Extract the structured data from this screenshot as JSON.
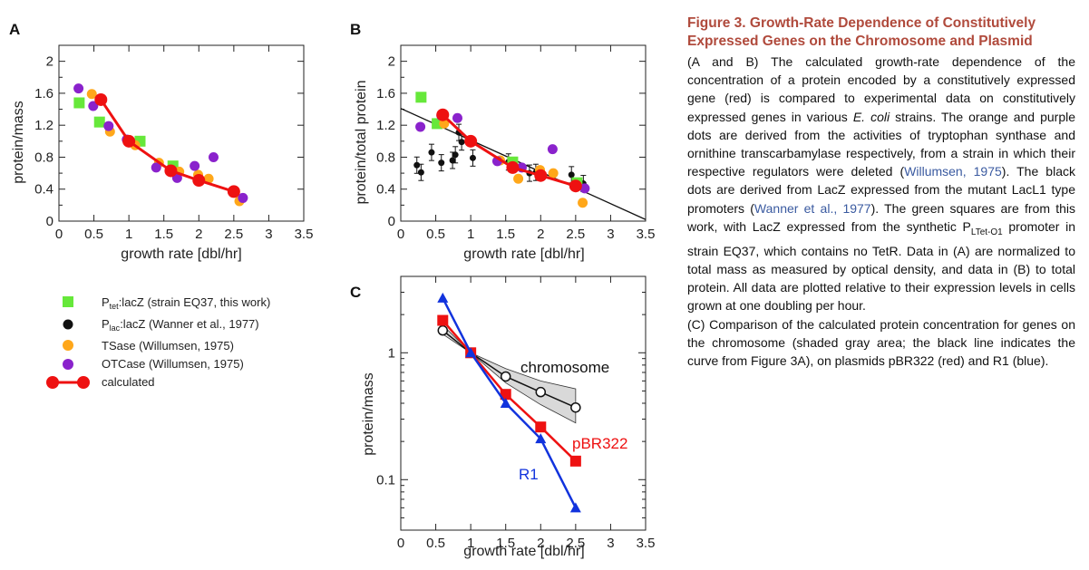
{
  "panels": {
    "A": {
      "letter": "A"
    },
    "B": {
      "letter": "B"
    },
    "C": {
      "letter": "C"
    }
  },
  "legend": {
    "ptet": {
      "main": "P",
      "sub": "tet",
      "rest": ":lacZ (strain EQ37, this work)"
    },
    "plac": {
      "main": "P",
      "sub": "lac",
      "rest": ":lacZ (Wanner et al., 1977)"
    },
    "tsase": "TSase (Willumsen, 1975)",
    "otcase": "OTCase (Willumsen, 1975)",
    "calculated": "calculated"
  },
  "colors": {
    "green": "#66e83a",
    "black": "#111111",
    "orange": "#ffa71a",
    "purple": "#8a22cc",
    "red": "#ee1111",
    "blue": "#1133dd",
    "caption_title": "#b04a3c",
    "link": "#3a5aa0",
    "shade": "#d9d9d9"
  },
  "caption": {
    "title": "Figure 3. Growth-Rate Dependence of Constitutively Expressed Genes on the Chromosome and Plasmid",
    "p1_a": "(A and B) The calculated growth-rate dependence of the concentration of a protein encoded by a constitutively expressed gene (red) is compared to experimental data on constitutively expressed genes in various ",
    "p1_ecoli": "E. coli",
    "p1_b": " strains. The orange and purple dots are derived from the activities of tryptophan synthase and ornithine transcarbamylase respectively, from a strain in which their respective regulators were deleted (",
    "p1_cite1": "Willumsen, 1975",
    "p1_c": "). The black dots are derived from LacZ expressed from the mutant LacL1 type promoters (",
    "p1_cite2": "Wanner et al., 1977",
    "p1_d": "). The green squares are from this work, with LacZ expressed from the synthetic P",
    "p1_sub": "LTet-O1",
    "p1_e": " promoter in strain EQ37, which contains no TetR. Data in (A) are normalized to total mass as measured by optical density, and data in (B) to total protein. All data are plotted relative to their expression levels in cells grown at one doubling per hour.",
    "p2": "(C) Comparison of the calculated protein concentration for genes on the chromosome (shaded gray area; the black line indicates the curve from Figure 3A), on plasmids pBR322 (red) and R1 (blue)."
  },
  "chart_data": [
    {
      "panel": "A",
      "type": "scatter",
      "xlabel": "growth rate [dbl/hr]",
      "ylabel": "protein/mass",
      "xlim": [
        0,
        3.5
      ],
      "ylim": [
        0,
        2.2
      ],
      "xticks": [
        "0",
        "0.5",
        "1",
        "1.5",
        "2",
        "2.5",
        "3",
        "3.5"
      ],
      "yticks": [
        "0",
        "0.4",
        "0.8",
        "1.2",
        "1.6",
        "2"
      ],
      "series": [
        {
          "name": "Ptet:lacZ (strain EQ37, this work)",
          "marker": "square",
          "color": "green",
          "points": [
            [
              0.29,
              1.48
            ],
            [
              0.58,
              1.24
            ],
            [
              1.16,
              1.0
            ],
            [
              1.63,
              0.69
            ]
          ]
        },
        {
          "name": "TSase (Willumsen, 1975)",
          "marker": "circle",
          "color": "orange",
          "points": [
            [
              0.47,
              1.59
            ],
            [
              0.73,
              1.12
            ],
            [
              1.09,
              0.95
            ],
            [
              1.43,
              0.73
            ],
            [
              1.72,
              0.62
            ],
            [
              1.99,
              0.58
            ],
            [
              2.14,
              0.53
            ],
            [
              2.58,
              0.25
            ]
          ]
        },
        {
          "name": "OTCase (Willumsen, 1975)",
          "marker": "circle",
          "color": "purple",
          "points": [
            [
              0.28,
              1.66
            ],
            [
              0.49,
              1.44
            ],
            [
              0.71,
              1.19
            ],
            [
              0.97,
              1.02
            ],
            [
              1.39,
              0.67
            ],
            [
              1.69,
              0.54
            ],
            [
              1.94,
              0.69
            ],
            [
              2.21,
              0.8
            ],
            [
              2.63,
              0.29
            ]
          ]
        },
        {
          "name": "calculated",
          "marker": "circle-line",
          "color": "red",
          "points": [
            [
              0.6,
              1.52
            ],
            [
              1.0,
              1.0
            ],
            [
              1.6,
              0.63
            ],
            [
              2.0,
              0.51
            ],
            [
              2.5,
              0.37
            ]
          ]
        }
      ]
    },
    {
      "panel": "B",
      "type": "scatter",
      "xlabel": "growth rate [dbl/hr]",
      "ylabel": "protein/total protein",
      "xlim": [
        0,
        3.5
      ],
      "ylim": [
        0,
        2.2
      ],
      "xticks": [
        "0",
        "0.5",
        "1",
        "1.5",
        "2",
        "2.5",
        "3",
        "3.5"
      ],
      "yticks": [
        "0",
        "0.4",
        "0.8",
        "1.2",
        "1.6",
        "2"
      ],
      "fit_line": [
        [
          0,
          1.41
        ],
        [
          3.5,
          0.02
        ]
      ],
      "series": [
        {
          "name": "Plac:lacZ (Wanner et al., 1977)",
          "marker": "circle",
          "color": "black",
          "points": [
            [
              0.23,
              0.7
            ],
            [
              0.29,
              0.61
            ],
            [
              0.44,
              0.86
            ],
            [
              0.58,
              0.73
            ],
            [
              0.74,
              0.76
            ],
            [
              0.78,
              0.83
            ],
            [
              0.83,
              1.11
            ],
            [
              0.87,
              0.99
            ],
            [
              1.03,
              0.79
            ],
            [
              1.54,
              0.74
            ],
            [
              1.84,
              0.6
            ],
            [
              1.93,
              0.61
            ],
            [
              2.44,
              0.58
            ],
            [
              2.61,
              0.47
            ]
          ]
        },
        {
          "name": "Ptet:lacZ (strain EQ37, this work)",
          "marker": "square",
          "color": "green",
          "points": [
            [
              0.29,
              1.55
            ],
            [
              0.52,
              1.22
            ],
            [
              1.6,
              0.74
            ],
            [
              2.52,
              0.48
            ]
          ]
        },
        {
          "name": "TSase (Willumsen, 1975)",
          "marker": "circle",
          "color": "orange",
          "points": [
            [
              0.62,
              1.22
            ],
            [
              0.99,
              0.99
            ],
            [
              1.42,
              0.76
            ],
            [
              1.68,
              0.53
            ],
            [
              1.99,
              0.64
            ],
            [
              2.18,
              0.6
            ],
            [
              2.6,
              0.23
            ]
          ]
        },
        {
          "name": "OTCase (Willumsen, 1975)",
          "marker": "circle",
          "color": "purple",
          "points": [
            [
              0.28,
              1.18
            ],
            [
              0.58,
              1.32
            ],
            [
              0.81,
              1.29
            ],
            [
              1.38,
              0.75
            ],
            [
              1.73,
              0.67
            ],
            [
              2.17,
              0.9
            ],
            [
              2.63,
              0.41
            ]
          ]
        },
        {
          "name": "calculated",
          "marker": "circle-line",
          "color": "red",
          "points": [
            [
              0.6,
              1.33
            ],
            [
              1.0,
              1.0
            ],
            [
              1.6,
              0.67
            ],
            [
              2.0,
              0.57
            ],
            [
              2.5,
              0.44
            ]
          ]
        }
      ]
    },
    {
      "panel": "C",
      "type": "line",
      "xlabel": "growth rate [dbl/hr]",
      "ylabel": "protein/mass",
      "yscale": "log",
      "xlim": [
        0,
        3.5
      ],
      "ylim": [
        0.04,
        4
      ],
      "xticks": [
        "0",
        "0.5",
        "1",
        "1.5",
        "2",
        "2.5",
        "3",
        "3.5"
      ],
      "yticks": [
        {
          "value": 1,
          "label": "1"
        },
        {
          "value": 0.1,
          "label": "0.1"
        }
      ],
      "shade_band": {
        "x": [
          0.6,
          1.0,
          1.5,
          2.0,
          2.5
        ],
        "upper": [
          1.65,
          1.0,
          0.75,
          0.6,
          0.52
        ],
        "lower": [
          1.4,
          1.0,
          0.58,
          0.39,
          0.28
        ]
      },
      "series": [
        {
          "name": "chromosome",
          "marker": "open-circle",
          "color": "black",
          "x": [
            0.6,
            1.0,
            1.5,
            2.0,
            2.5
          ],
          "y": [
            1.5,
            1.0,
            0.65,
            0.49,
            0.37
          ]
        },
        {
          "name": "pBR322",
          "marker": "square",
          "color": "red",
          "x": [
            0.6,
            1.0,
            1.5,
            2.0,
            2.5
          ],
          "y": [
            1.8,
            1.0,
            0.47,
            0.26,
            0.14
          ]
        },
        {
          "name": "R1",
          "marker": "triangle",
          "color": "blue",
          "x": [
            0.6,
            1.0,
            1.5,
            2.0,
            2.5
          ],
          "y": [
            2.7,
            1.0,
            0.4,
            0.21,
            0.06
          ]
        }
      ]
    }
  ]
}
